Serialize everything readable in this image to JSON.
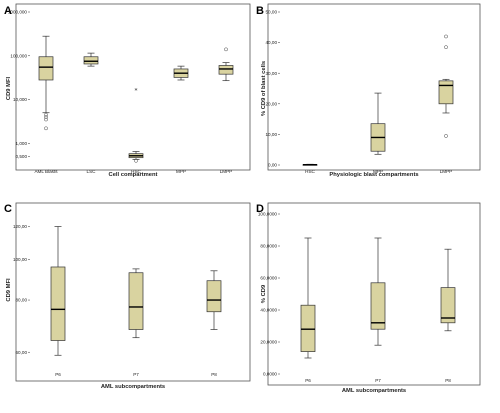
{
  "colors": {
    "box_fill": "#d9d3a0",
    "box_stroke": "#333333",
    "median": "#000000",
    "frame": "#555555"
  },
  "chart_data": [
    {
      "panel": "A",
      "type": "box",
      "ylabel": "CD9 MFI",
      "xlabel": "Cell compartment",
      "yscale": "log",
      "ylim": [
        320,
        1000000
      ],
      "yticks": [
        {
          "value": 1000000,
          "label": "1000,000"
        },
        {
          "value": 100000,
          "label": "100,000"
        },
        {
          "value": 10000,
          "label": "10,000"
        },
        {
          "value": 1000,
          "label": "1,000"
        },
        {
          "value": 500,
          "label": "0,500"
        }
      ],
      "categories": [
        "AML Blasts",
        "LSC",
        "HSC",
        "MPP",
        "LMPP"
      ],
      "boxes": [
        {
          "min": 5000,
          "q1": 28000,
          "median": 55000,
          "q3": 95000,
          "max": 280000,
          "outliers": [
            4500,
            4000,
            3500,
            2200
          ],
          "star_outliers": []
        },
        {
          "min": 58000,
          "q1": 65000,
          "median": 75000,
          "q3": 95000,
          "max": 115000,
          "outliers": [],
          "star_outliers": []
        },
        {
          "min": 430,
          "q1": 470,
          "median": 520,
          "q3": 580,
          "max": 650,
          "outliers": [
            400
          ],
          "star_outliers": [
            16000
          ]
        },
        {
          "min": 28000,
          "q1": 32000,
          "median": 40000,
          "q3": 50000,
          "max": 58000,
          "outliers": [],
          "star_outliers": []
        },
        {
          "min": 27000,
          "q1": 38000,
          "median": 50000,
          "q3": 60000,
          "max": 70000,
          "outliers": [
            140000
          ],
          "star_outliers": []
        }
      ]
    },
    {
      "panel": "B",
      "type": "box",
      "ylabel": "% CD9 of blast cells",
      "xlabel": "Physiologic blast compartments",
      "yscale": "linear",
      "ylim": [
        0,
        50
      ],
      "yticks": [
        {
          "value": 0,
          "label": "0,00"
        },
        {
          "value": 10,
          "label": "10,00"
        },
        {
          "value": 20,
          "label": "20,00"
        },
        {
          "value": 30,
          "label": "30,00"
        },
        {
          "value": 40,
          "label": "40,00"
        },
        {
          "value": 50,
          "label": "50,00"
        }
      ],
      "categories": [
        "HSC",
        "MPP",
        "LMPP"
      ],
      "boxes": [
        {
          "min": 0.0,
          "q1": 0.05,
          "median": 0.1,
          "q3": 0.15,
          "max": 0.25,
          "outliers": [],
          "star_outliers": []
        },
        {
          "min": 3.5,
          "q1": 4.5,
          "median": 9.0,
          "q3": 13.5,
          "max": 23.5,
          "outliers": [],
          "star_outliers": []
        },
        {
          "min": 17.0,
          "q1": 20.0,
          "median": 26.0,
          "q3": 27.5,
          "max": 28.0,
          "outliers": [
            42.0,
            38.5,
            9.5
          ],
          "star_outliers": []
        }
      ]
    },
    {
      "panel": "C",
      "type": "box",
      "ylabel": "CD9 MFI",
      "xlabel": "AML subcompartments",
      "yscale": "log",
      "ylim": [
        55,
        130
      ],
      "yticks": [
        {
          "value": 120,
          "label": "120,00"
        },
        {
          "value": 100,
          "label": "100,00"
        },
        {
          "value": 80,
          "label": "80,00"
        },
        {
          "value": 60,
          "label": "60,00"
        }
      ],
      "categories": [
        "P6",
        "P7",
        "P8"
      ],
      "boxes": [
        {
          "min": 59,
          "q1": 64,
          "median": 76,
          "q3": 96,
          "max": 120,
          "outliers": [],
          "star_outliers": []
        },
        {
          "min": 65,
          "q1": 68,
          "median": 77,
          "q3": 93,
          "max": 95,
          "outliers": [],
          "star_outliers": []
        },
        {
          "min": 68,
          "q1": 75,
          "median": 80,
          "q3": 89,
          "max": 94,
          "outliers": [],
          "star_outliers": []
        }
      ]
    },
    {
      "panel": "D",
      "type": "box",
      "ylabel": "% CD9",
      "xlabel": "AML subcompartments",
      "yscale": "linear",
      "ylim": [
        0,
        100
      ],
      "yticks": [
        {
          "value": 0,
          "label": "0,0000"
        },
        {
          "value": 20,
          "label": "20,0000"
        },
        {
          "value": 40,
          "label": "40,0000"
        },
        {
          "value": 60,
          "label": "60,0000"
        },
        {
          "value": 80,
          "label": "80,0000"
        },
        {
          "value": 100,
          "label": "100,0000"
        }
      ],
      "categories": [
        "P6",
        "P7",
        "P8"
      ],
      "boxes": [
        {
          "min": 10,
          "q1": 14,
          "median": 28,
          "q3": 43,
          "max": 85,
          "outliers": [],
          "star_outliers": []
        },
        {
          "min": 18,
          "q1": 28,
          "median": 32,
          "q3": 57,
          "max": 85,
          "outliers": [],
          "star_outliers": []
        },
        {
          "min": 27,
          "q1": 32,
          "median": 35,
          "q3": 54,
          "max": 78,
          "outliers": [],
          "star_outliers": []
        }
      ]
    }
  ]
}
